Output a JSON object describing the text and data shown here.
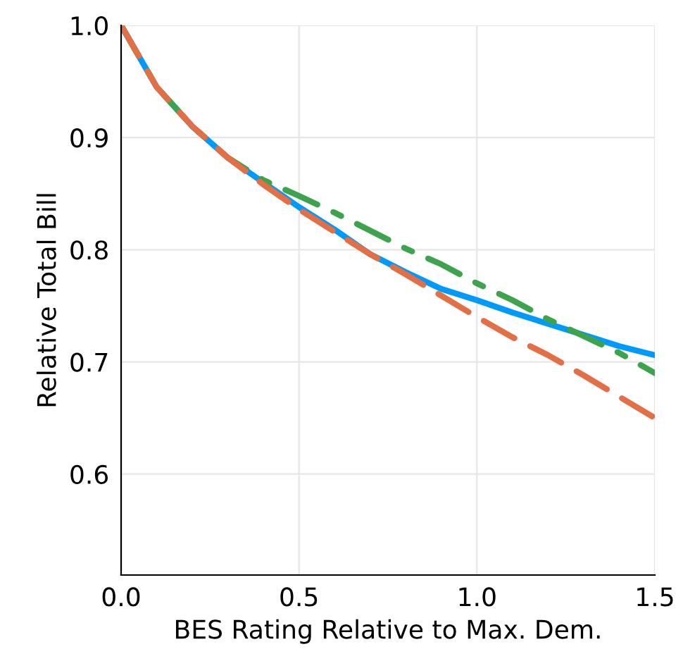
{
  "chart_data": {
    "type": "line",
    "xlabel": "BES Rating Relative to Max. Dem.",
    "ylabel": "Relative Total Bill",
    "x": [
      0,
      0.1,
      0.2,
      0.3,
      0.4,
      0.5,
      0.6,
      0.7,
      0.8,
      0.9,
      1.0,
      1.1,
      1.2,
      1.3,
      1.4,
      1.5
    ],
    "series": [
      {
        "color": "#009afa",
        "line_style": "solid",
        "values": [
          1.0,
          0.945,
          0.91,
          0.882,
          0.86,
          0.838,
          0.818,
          0.796,
          0.78,
          0.765,
          0.755,
          0.744,
          0.734,
          0.724,
          0.714,
          0.706
        ]
      },
      {
        "color": "#3da44d",
        "line_style": "dashdot",
        "values": [
          1.0,
          0.945,
          0.91,
          0.882,
          0.862,
          0.848,
          0.833,
          0.817,
          0.801,
          0.787,
          0.77,
          0.755,
          0.738,
          0.723,
          0.708,
          0.69
        ]
      },
      {
        "color": "#e26f46",
        "line_style": "dashed",
        "values": [
          1.0,
          0.945,
          0.91,
          0.882,
          0.858,
          0.836,
          0.816,
          0.796,
          0.778,
          0.759,
          0.74,
          0.722,
          0.706,
          0.688,
          0.669,
          0.65
        ]
      }
    ],
    "xlim": [
      0,
      1.5
    ],
    "ylim": [
      0.51,
      1.0
    ],
    "xticks": [
      {
        "value": 0,
        "label": "0.0"
      },
      0.5,
      {
        "value": 1,
        "label": "1.0"
      },
      1.5
    ],
    "yticks": [
      0.6,
      0.7,
      0.8,
      0.9,
      {
        "value": 1,
        "label": "1.0"
      }
    ],
    "grid": true,
    "legend": false
  }
}
